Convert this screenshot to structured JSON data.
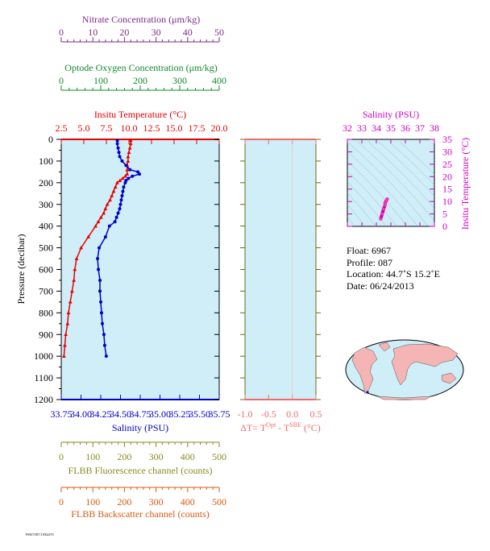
{
  "colors": {
    "nitrate": "#7f2a8a",
    "oxygen": "#118a2a",
    "temperature": "#e80000",
    "salinity": "#0000c8",
    "delta": "#f06a6a",
    "ts_salinity": "#d000c0",
    "fluorescence": "#8a8a22",
    "backscatter": "#d85a10",
    "plot_bg": "#cfeef8",
    "axis_olive": "#6b6b10"
  },
  "axes": {
    "nitrate": {
      "label": "Nitrate Concentration (μm/kg)",
      "ticks": [
        "0",
        "10",
        "20",
        "30",
        "40",
        "50"
      ]
    },
    "oxygen": {
      "label": "Optode Oxygen Concentration (μm/kg)",
      "ticks": [
        "0",
        "100",
        "200",
        "300",
        "400"
      ]
    },
    "temperature": {
      "label": "Insitu Temperature (°C)",
      "ticks": [
        "2.5",
        "5.0",
        "7.5",
        "10.0",
        "12.5",
        "15.0",
        "17.5",
        "20.0"
      ]
    },
    "salinity": {
      "label": "Salinity (PSU)",
      "ticks": [
        "33.75",
        "34.00",
        "34.25",
        "34.50",
        "34.75",
        "35.00",
        "35.25",
        "35.50",
        "35.75"
      ]
    },
    "pressure": {
      "label": "Pressure (decibar)",
      "ticks": [
        "0",
        "100",
        "200",
        "300",
        "400",
        "500",
        "600",
        "700",
        "800",
        "900",
        "1000",
        "1100",
        "1200"
      ]
    },
    "delta_t": {
      "ticks": [
        "-1.0",
        "-0.5",
        "0.0",
        "0.5"
      ]
    },
    "delta_t_label": {
      "prefix": "ΔT= T",
      "sup1": "Opt",
      "mid": " - T",
      "sup2": "SBE",
      "suffix": " (°C)"
    },
    "ts_salinity": {
      "label": "Salinity (PSU)",
      "ticks": [
        "32",
        "33",
        "34",
        "35",
        "36",
        "37",
        "38"
      ]
    },
    "ts_temperature": {
      "label": "Insitu Temperature (°C)",
      "ticks": [
        "0",
        "5",
        "10",
        "15",
        "20",
        "25",
        "30",
        "35"
      ]
    },
    "fluorescence": {
      "label": "FLBB Fluorescence channel (counts)",
      "ticks": [
        "0",
        "100",
        "200",
        "300",
        "400",
        "500"
      ]
    },
    "backscatter": {
      "label": "FLBB Backscatter channel (counts)",
      "ticks": [
        "0",
        "100",
        "200",
        "300",
        "400",
        "500"
      ]
    }
  },
  "info": {
    "float": "Float:  6967",
    "profile": "Profile:  087",
    "location": "Location:  44.7˚S  15.2˚E",
    "date": "Date:  06/24/2013"
  },
  "footer": "P6967/087/13062470",
  "chart_data": {
    "type": "line",
    "y": "pressure",
    "ylim": [
      1200,
      0
    ],
    "xlim_temperature": [
      2.5,
      20.0
    ],
    "xlim_salinity": [
      33.75,
      35.75
    ],
    "series": [
      {
        "name": "Insitu Temperature (°C)",
        "pressure": [
          5,
          20,
          40,
          60,
          80,
          100,
          120,
          140,
          160,
          170,
          180,
          190,
          200,
          220,
          240,
          260,
          280,
          300,
          320,
          340,
          360,
          380,
          400,
          450,
          500,
          550,
          600,
          650,
          700,
          750,
          800,
          850,
          900,
          950,
          1000
        ],
        "values": [
          10.2,
          10.2,
          10.1,
          10.0,
          9.9,
          9.9,
          9.8,
          9.8,
          9.8,
          9.6,
          9.3,
          9.0,
          8.7,
          8.5,
          8.3,
          8.1,
          7.9,
          7.6,
          7.4,
          7.2,
          6.9,
          6.6,
          6.3,
          5.5,
          4.7,
          4.2,
          4.0,
          3.9,
          3.7,
          3.5,
          3.3,
          3.2,
          3.0,
          2.9,
          2.8
        ]
      },
      {
        "name": "Salinity (PSU)",
        "pressure": [
          5,
          20,
          40,
          60,
          80,
          100,
          120,
          140,
          150,
          160,
          170,
          180,
          190,
          200,
          220,
          240,
          260,
          280,
          300,
          320,
          340,
          360,
          380,
          400,
          450,
          500,
          550,
          600,
          650,
          700,
          750,
          800,
          850,
          900,
          950,
          1000
        ],
        "values": [
          34.46,
          34.46,
          34.47,
          34.48,
          34.49,
          34.52,
          34.57,
          34.62,
          34.72,
          34.74,
          34.65,
          34.6,
          34.57,
          34.56,
          34.54,
          34.53,
          34.52,
          34.51,
          34.5,
          34.49,
          34.47,
          34.45,
          34.43,
          34.36,
          34.31,
          34.23,
          34.21,
          34.22,
          34.24,
          34.24,
          34.25,
          34.26,
          34.27,
          34.29,
          34.3,
          34.32
        ]
      }
    ],
    "ts_diagram": {
      "salinity_range": [
        32,
        38
      ],
      "temperature_range": [
        0,
        35
      ],
      "points": {
        "salinity": [
          34.3,
          34.4,
          34.5,
          34.6,
          34.6,
          34.7,
          34.75
        ],
        "temperature": [
          3,
          5,
          7,
          8.5,
          9.5,
          10.5,
          11
        ]
      }
    }
  }
}
